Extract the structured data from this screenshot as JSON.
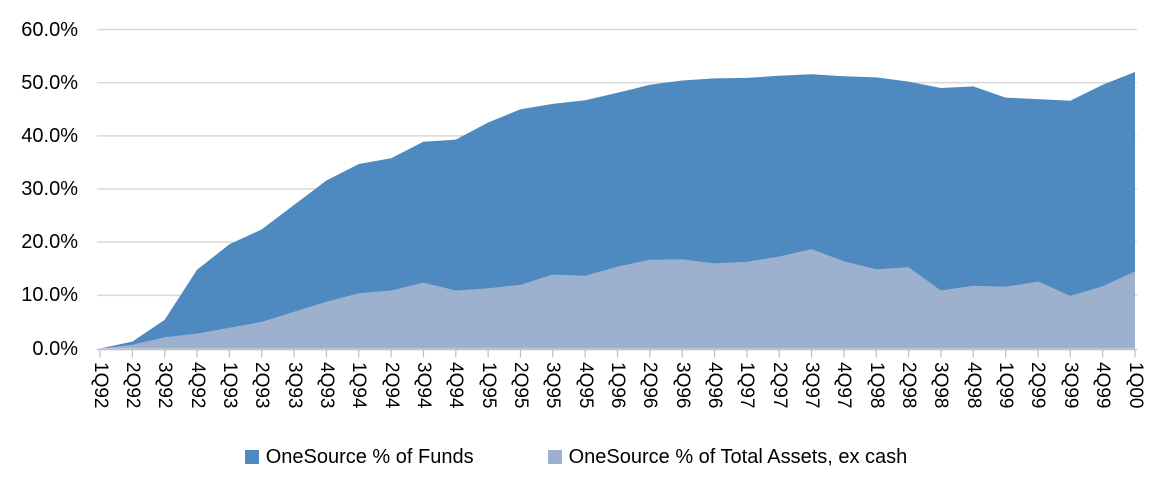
{
  "chart_data": {
    "type": "area",
    "mode": "overlapping",
    "title": "",
    "categories": [
      "1Q92",
      "2Q92",
      "3Q92",
      "4Q92",
      "1Q93",
      "2Q93",
      "3Q93",
      "4Q93",
      "1Q94",
      "2Q94",
      "3Q94",
      "4Q94",
      "1Q95",
      "2Q95",
      "3Q95",
      "4Q95",
      "1Q96",
      "2Q96",
      "3Q96",
      "4Q96",
      "1Q97",
      "2Q97",
      "3Q97",
      "4Q97",
      "1Q98",
      "2Q98",
      "3Q98",
      "4Q98",
      "1Q99",
      "2Q99",
      "3Q99",
      "4Q99",
      "1Q00"
    ],
    "series": [
      {
        "name": "OneSource % of Funds",
        "color": "#4E8AC0",
        "values": [
          0,
          1.3,
          5.4,
          14.8,
          19.6,
          22.4,
          27.0,
          31.6,
          34.7,
          35.8,
          38.9,
          39.3,
          42.5,
          45.0,
          46.0,
          46.7,
          48.1,
          49.6,
          50.4,
          50.8,
          50.9,
          51.3,
          51.6,
          51.2,
          51.0,
          50.2,
          49.0,
          49.3,
          47.2,
          46.9,
          46.6,
          49.6,
          52.0
        ]
      },
      {
        "name": "OneSource % of Total Assets, ex cash",
        "color": "#9DB0CD",
        "values": [
          0,
          0.7,
          2.1,
          2.8,
          3.9,
          5.0,
          6.9,
          8.8,
          10.4,
          10.9,
          12.4,
          10.9,
          11.3,
          12.0,
          13.9,
          13.7,
          15.4,
          16.7,
          16.8,
          16.0,
          16.3,
          17.3,
          18.7,
          16.4,
          14.9,
          15.3,
          10.9,
          11.8,
          11.6,
          12.6,
          9.9,
          11.7,
          14.5
        ]
      }
    ],
    "xlabel": "",
    "ylabel": "",
    "y_axis": {
      "min": 0,
      "max": 60,
      "tick_values": [
        0,
        10,
        20,
        30,
        40,
        50,
        60
      ],
      "tick_labels": [
        "0.0%",
        "10.0%",
        "20.0%",
        "30.0%",
        "40.0%",
        "50.0%",
        "60.0%"
      ],
      "grid": true
    },
    "legend_position": "bottom"
  },
  "colors": {
    "series_funds": "#4E8AC0",
    "series_assets": "#9DB0CD",
    "gridline": "#D9D9D9",
    "axis": "#BFBFBF",
    "text": "#000000",
    "background": "#FFFFFF"
  }
}
